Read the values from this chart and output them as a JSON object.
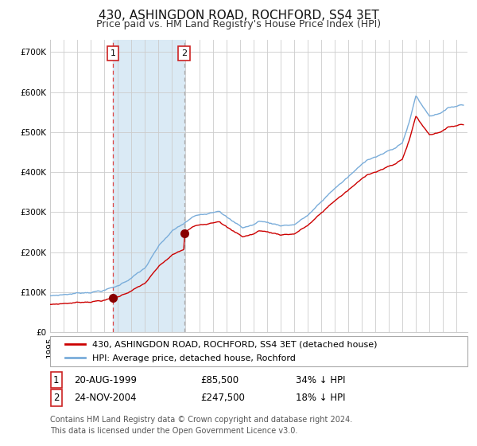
{
  "title": "430, ASHINGDON ROAD, ROCHFORD, SS4 3ET",
  "subtitle": "Price paid vs. HM Land Registry's House Price Index (HPI)",
  "ylim": [
    0,
    730000
  ],
  "yticks": [
    0,
    100000,
    200000,
    300000,
    400000,
    500000,
    600000,
    700000
  ],
  "ytick_labels": [
    "£0",
    "£100K",
    "£200K",
    "£300K",
    "£400K",
    "£500K",
    "£600K",
    "£700K"
  ],
  "hpi_color": "#7aadda",
  "price_color": "#cc0000",
  "marker_color": "#880000",
  "grid_color": "#cccccc",
  "bg_color": "#ffffff",
  "shade_color": "#daeaf5",
  "vline1_color": "#dd4444",
  "vline2_color": "#aaaaaa",
  "point1_date_num": 1999.633,
  "point1_value": 85500,
  "point1_label": "1",
  "point2_date_num": 2004.9,
  "point2_value": 247500,
  "point2_label": "2",
  "legend_line1": "430, ASHINGDON ROAD, ROCHFORD, SS4 3ET (detached house)",
  "legend_line2": "HPI: Average price, detached house, Rochford",
  "table_row1": [
    "1",
    "20-AUG-1999",
    "£85,500",
    "34% ↓ HPI"
  ],
  "table_row2": [
    "2",
    "24-NOV-2004",
    "£247,500",
    "18% ↓ HPI"
  ],
  "footer": "Contains HM Land Registry data © Crown copyright and database right 2024.\nThis data is licensed under the Open Government Licence v3.0.",
  "title_fontsize": 11,
  "subtitle_fontsize": 9,
  "tick_fontsize": 7.5,
  "legend_fontsize": 8,
  "table_fontsize": 8.5,
  "footer_fontsize": 7
}
